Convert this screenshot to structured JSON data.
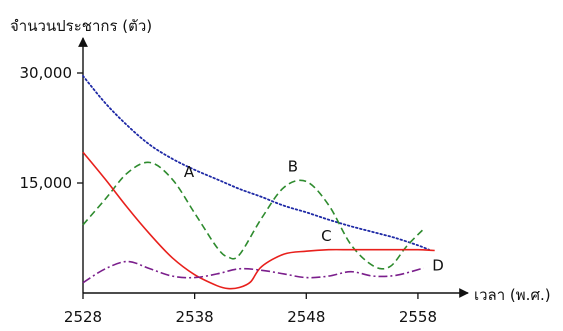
{
  "chart_data": {
    "type": "line",
    "ylabel": "จำนวนประชากร (ตัว)",
    "xlabel": "เวลา (พ.ศ.)",
    "x_ticks": [
      2528,
      2538,
      2548,
      2558
    ],
    "y_ticks": [
      15000,
      30000
    ],
    "y_tick_labels": [
      "15,000",
      "30,000"
    ],
    "xlim": [
      2528,
      2561.5
    ],
    "ylim": [
      0,
      33000
    ],
    "grid": false,
    "legend": "none",
    "series": [
      {
        "name": "A",
        "color": "#1f2aa6",
        "style": "dotted",
        "x": [
          2528,
          2530,
          2532,
          2534,
          2536,
          2538,
          2540,
          2542,
          2544,
          2546,
          2548,
          2550,
          2552,
          2554,
          2556,
          2558,
          2559
        ],
        "y": [
          29600,
          25900,
          22800,
          20200,
          18300,
          16800,
          15500,
          14200,
          13100,
          11900,
          11000,
          10000,
          9100,
          8300,
          7500,
          6500,
          5900
        ]
      },
      {
        "name": "B",
        "color": "#2e8b2e",
        "style": "dashed",
        "x": [
          2528,
          2530,
          2532,
          2534,
          2536,
          2538,
          2540,
          2541,
          2542,
          2544,
          2546,
          2548,
          2550,
          2552,
          2554,
          2555.5,
          2557,
          2558.5
        ],
        "y": [
          9300,
          12800,
          16400,
          17800,
          15500,
          10900,
          6200,
          4900,
          5200,
          10200,
          14400,
          15200,
          12000,
          6600,
          3700,
          3600,
          6400,
          8700
        ]
      },
      {
        "name": "C",
        "color": "#e8201c",
        "style": "solid",
        "x": [
          2528,
          2530,
          2532,
          2534,
          2536,
          2538,
          2540,
          2541,
          2542,
          2543,
          2544,
          2546,
          2548,
          2550,
          2552,
          2554,
          2556,
          2558,
          2559.5
        ],
        "y": [
          19200,
          15500,
          11600,
          8000,
          4800,
          2500,
          1000,
          600,
          750,
          1500,
          3600,
          5300,
          5700,
          5900,
          5900,
          5900,
          5900,
          5900,
          5800
        ]
      },
      {
        "name": "D",
        "color": "#7b1f8c",
        "style": "dashdot",
        "x": [
          2528,
          2530,
          2532,
          2534,
          2536,
          2538,
          2540,
          2542,
          2544,
          2546,
          2548,
          2550,
          2552,
          2554,
          2556,
          2558.5
        ],
        "y": [
          1400,
          3300,
          4300,
          3300,
          2300,
          2100,
          2600,
          3300,
          3100,
          2600,
          2100,
          2300,
          2900,
          2300,
          2400,
          3400
        ]
      }
    ],
    "annotations": [
      {
        "text": "A",
        "x": 2537.5,
        "y": 15800
      },
      {
        "text": "B",
        "x": 2546.8,
        "y": 16600
      },
      {
        "text": "C",
        "x": 2549.8,
        "y": 7100
      },
      {
        "text": "D",
        "x": 2559.8,
        "y": 3100
      }
    ]
  }
}
